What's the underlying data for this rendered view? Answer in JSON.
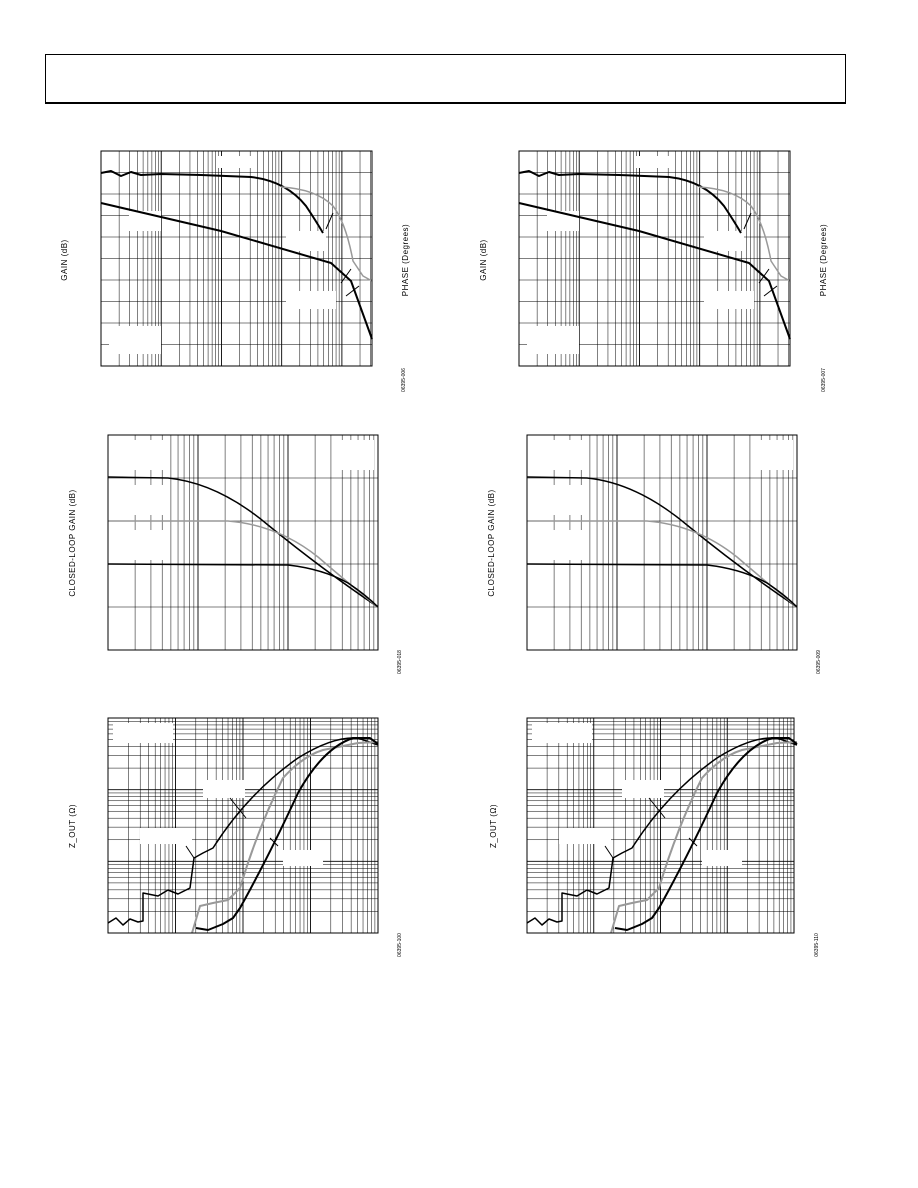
{
  "figures": [
    {
      "y_label": "GAIN (dB)",
      "y2_label": "PHASE (Degrees)",
      "id": "06395-006"
    },
    {
      "y_label": "GAIN (dB)",
      "y2_label": "PHASE (Degrees)",
      "id": "06395-007"
    },
    {
      "y_label": "CLOSED-LOOP GAIN (dB)",
      "id": "06395-018"
    },
    {
      "y_label": "CLOSED-LOOP GAIN (dB)",
      "id": "06395-009"
    },
    {
      "y_label": "Z_OUT (Ω)",
      "id": "06395-100"
    },
    {
      "y_label": "Z_OUT (Ω)",
      "id": "06395-110"
    }
  ]
}
